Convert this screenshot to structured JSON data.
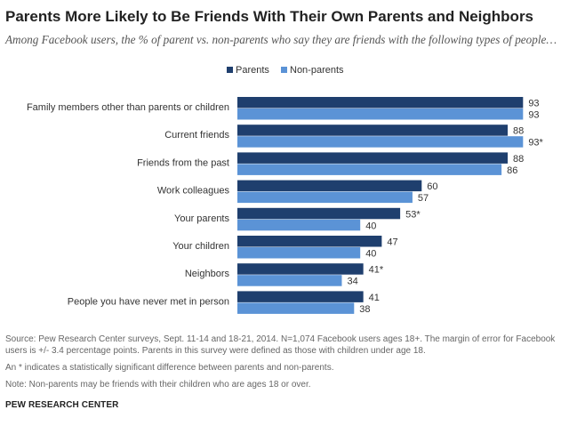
{
  "header": {
    "title": "Parents More Likely to Be Friends With Their Own Parents and Neighbors",
    "subtitle": "Among Facebook users, the % of parent vs. non-parents who say they are friends with the following types of people…"
  },
  "colors": {
    "parents": "#1f3f6e",
    "non_parents": "#5b93d6",
    "label_text": "#333333"
  },
  "chart_data": {
    "type": "bar",
    "orientation": "horizontal",
    "categories": [
      "Family members other than parents or children",
      "Current friends",
      "Friends from the past",
      "Work colleagues",
      "Your parents",
      "Your children",
      "Neighbors",
      "People you have never met in person"
    ],
    "series": [
      {
        "name": "Parents",
        "values": [
          93,
          88,
          88,
          60,
          53,
          47,
          41,
          41
        ],
        "labels": [
          "93",
          "88",
          "88",
          "60",
          "53*",
          "47",
          "41*",
          "41"
        ]
      },
      {
        "name": "Non-parents",
        "values": [
          93,
          93,
          86,
          57,
          40,
          40,
          34,
          38
        ],
        "labels": [
          "93",
          "93*",
          "86",
          "57",
          "40",
          "40",
          "34",
          "38"
        ]
      }
    ],
    "xlim": [
      0,
      100
    ],
    "grid": false,
    "legend_position": "top"
  },
  "notes": {
    "source_line1": "Source: Pew Research Center surveys, Sept. 11-14 and 18-21, 2014.  N=1,074 Facebook users ages 18+. The margin of error for Facebook",
    "source_line2": "users is +/- 3.4 percentage points. Parents in this survey were defined as those with children under age 18.",
    "asterisk": "An * indicates a statistically significant difference between parents and non-parents.",
    "note": "Note: Non-parents may be friends with their children who are ages 18 or over."
  },
  "footer": {
    "credit": "PEW RESEARCH CENTER"
  }
}
